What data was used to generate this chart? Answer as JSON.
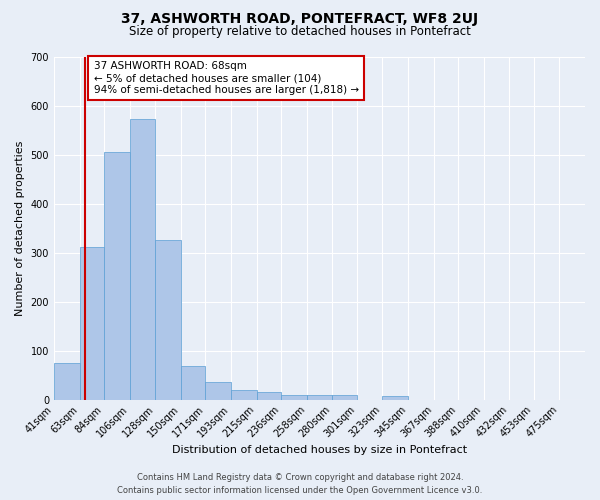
{
  "title": "37, ASHWORTH ROAD, PONTEFRACT, WF8 2UJ",
  "subtitle": "Size of property relative to detached houses in Pontefract",
  "xlabel": "Distribution of detached houses by size in Pontefract",
  "ylabel": "Number of detached properties",
  "footer_line1": "Contains HM Land Registry data © Crown copyright and database right 2024.",
  "footer_line2": "Contains public sector information licensed under the Open Government Licence v3.0.",
  "bin_labels": [
    "41sqm",
    "63sqm",
    "84sqm",
    "106sqm",
    "128sqm",
    "150sqm",
    "171sqm",
    "193sqm",
    "215sqm",
    "236sqm",
    "258sqm",
    "280sqm",
    "301sqm",
    "323sqm",
    "345sqm",
    "367sqm",
    "388sqm",
    "410sqm",
    "432sqm",
    "453sqm",
    "475sqm"
  ],
  "bin_edges": [
    41,
    63,
    84,
    106,
    128,
    150,
    171,
    193,
    215,
    236,
    258,
    280,
    301,
    323,
    345,
    367,
    388,
    410,
    432,
    453,
    475
  ],
  "bar_heights": [
    74,
    312,
    505,
    573,
    325,
    68,
    37,
    20,
    15,
    10,
    10,
    10,
    0,
    7,
    0,
    0,
    0,
    0,
    0,
    0,
    0
  ],
  "bar_color": "#aec6e8",
  "bar_edge_color": "#5a9fd4",
  "property_size": 68,
  "vline_x": 68,
  "vline_color": "#cc0000",
  "annotation_line1": "37 ASHWORTH ROAD: 68sqm",
  "annotation_line2": "← 5% of detached houses are smaller (104)",
  "annotation_line3": "94% of semi-detached houses are larger (1,818) →",
  "annotation_box_color": "#ffffff",
  "annotation_box_edge": "#cc0000",
  "ylim": [
    0,
    700
  ],
  "yticks": [
    0,
    100,
    200,
    300,
    400,
    500,
    600,
    700
  ],
  "background_color": "#e8eef7",
  "grid_color": "#ffffff",
  "title_fontsize": 10,
  "subtitle_fontsize": 8.5,
  "axis_label_fontsize": 8,
  "tick_fontsize": 7,
  "annotation_fontsize": 7.5,
  "footer_fontsize": 6
}
